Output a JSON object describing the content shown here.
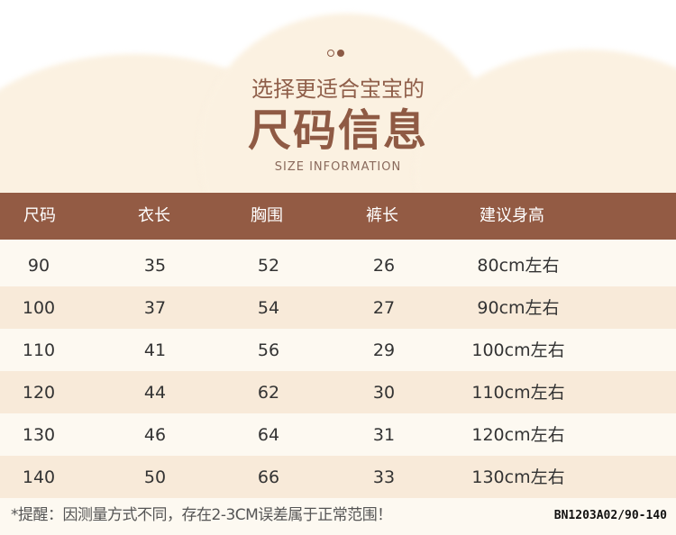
{
  "header": {
    "subtitle": "选择更适合宝宝的",
    "title": "尺码信息",
    "title_en": "SIZE INFORMATION"
  },
  "colors": {
    "header_bar": "#935b44",
    "row_alt": "#f8ead9",
    "title": "#8f5a44"
  },
  "table": {
    "columns": [
      "尺码",
      "衣长",
      "胸围",
      "裤长",
      "建议身高"
    ],
    "rows": [
      [
        "90",
        "35",
        "52",
        "26",
        "80cm左右"
      ],
      [
        "100",
        "37",
        "54",
        "27",
        "90cm左右"
      ],
      [
        "110",
        "41",
        "56",
        "29",
        "100cm左右"
      ],
      [
        "120",
        "44",
        "62",
        "30",
        "110cm左右"
      ],
      [
        "130",
        "46",
        "64",
        "31",
        "120cm左右"
      ],
      [
        "140",
        "50",
        "66",
        "33",
        "130cm左右"
      ]
    ]
  },
  "footer": {
    "note": "*提醒：因测量方式不同，存在2-3CM误差属于正常范围！",
    "code": "BN1203A02/90-140"
  }
}
